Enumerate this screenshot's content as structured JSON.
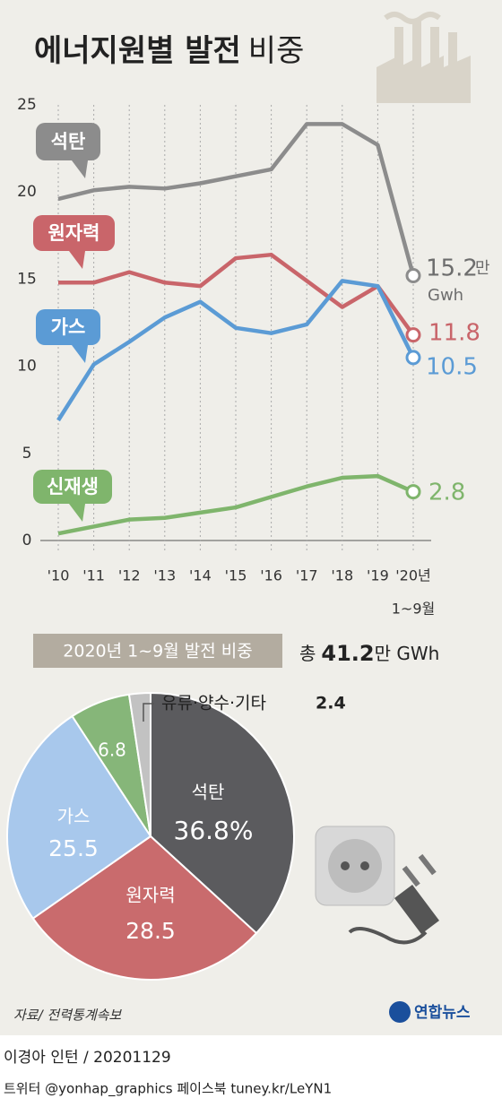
{
  "title": "에너지원별 발전",
  "title_suffix": "비중",
  "chart_data": [
    {
      "type": "line",
      "categories": [
        "'10",
        "'11",
        "'12",
        "'13",
        "'14",
        "'15",
        "'16",
        "'17",
        "'18",
        "'19",
        "'20년"
      ],
      "x_note": "1~9월",
      "ylim": [
        0,
        25
      ],
      "yticks": [
        0,
        5,
        10,
        15,
        20,
        25
      ],
      "grid": true,
      "series": [
        {
          "name": "석탄",
          "color": "#8c8c8c",
          "values": [
            19.6,
            20.1,
            20.3,
            20.2,
            20.5,
            20.9,
            21.3,
            23.9,
            23.9,
            22.7,
            15.2
          ],
          "end_unit": "만",
          "end_unit2": "Gwh"
        },
        {
          "name": "원자력",
          "color": "#c9656a",
          "values": [
            14.8,
            14.8,
            15.4,
            14.8,
            14.6,
            16.2,
            16.4,
            14.9,
            13.4,
            14.6,
            11.8
          ]
        },
        {
          "name": "가스",
          "color": "#5b9bd5",
          "values": [
            6.9,
            10.1,
            11.4,
            12.8,
            13.7,
            12.2,
            11.9,
            12.4,
            14.9,
            14.6,
            10.5
          ]
        },
        {
          "name": "신재생",
          "color": "#7fb56c",
          "values": [
            0.4,
            0.8,
            1.2,
            1.3,
            1.6,
            1.9,
            2.5,
            3.1,
            3.6,
            3.7,
            2.8
          ]
        }
      ]
    },
    {
      "type": "pie",
      "title": "2020년 1~9월 발전 비중",
      "total_prefix": "총",
      "total": 41.2,
      "total_unit": "만 GWh",
      "categories": [
        "석탄",
        "원자력",
        "가스",
        "신재생",
        "유류·양수·기타"
      ],
      "values": [
        36.8,
        28.5,
        25.5,
        6.8,
        2.4
      ],
      "value_labels": [
        "36.8%",
        "28.5",
        "25.5",
        "6.8",
        "2.4"
      ],
      "colors": [
        "#5b5b5e",
        "#c96b6d",
        "#a8c8ec",
        "#86b679",
        "#c2c2c2"
      ]
    }
  ],
  "source": "자료/ 전력통계속보",
  "logo": "연합뉴스",
  "credit": "이경아 인턴 / 20201129",
  "social": "트위터 @yonhap_graphics  페이스북 tuney.kr/LeYN1"
}
